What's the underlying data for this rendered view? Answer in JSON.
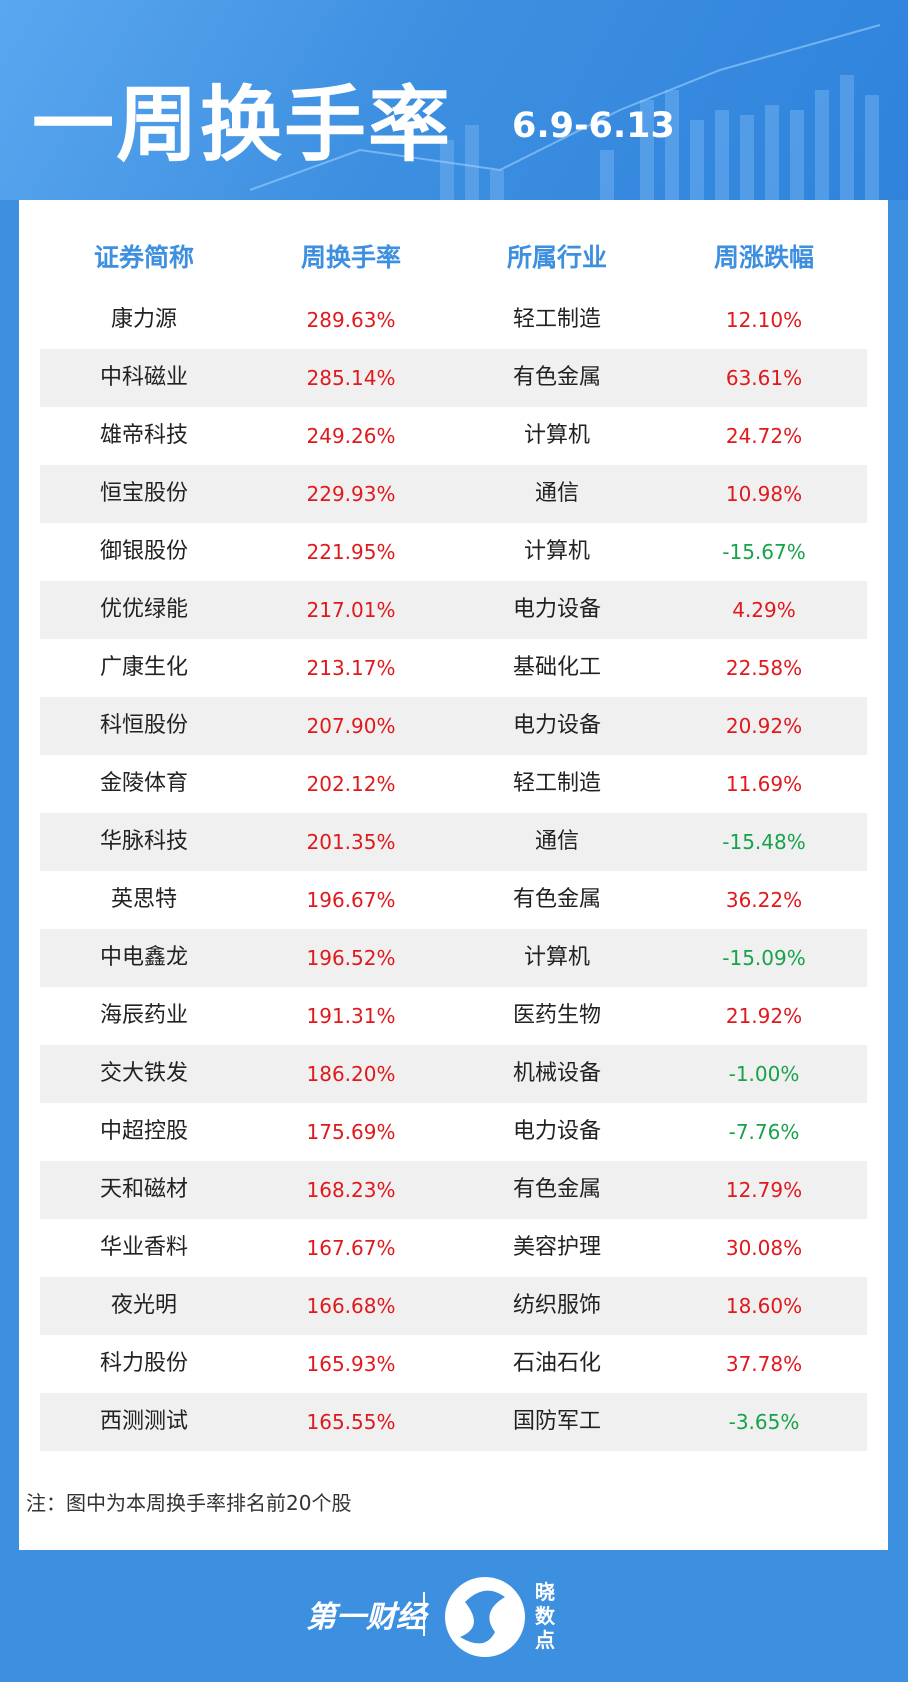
{
  "header": {
    "title": "一周换手率",
    "date": "6.9-6.13"
  },
  "table": {
    "columns": [
      "证券简称",
      "周换手率",
      "所属行业",
      "周涨跌幅"
    ],
    "rows": [
      [
        "康力源",
        "289.63%",
        "轻工制造",
        "12.10%"
      ],
      [
        "中科磁业",
        "285.14%",
        "有色金属",
        "63.61%"
      ],
      [
        "雄帝科技",
        "249.26%",
        "计算机",
        "24.72%"
      ],
      [
        "恒宝股份",
        "229.93%",
        "通信",
        "10.98%"
      ],
      [
        "御银股份",
        "221.95%",
        "计算机",
        "-15.67%"
      ],
      [
        "优优绿能",
        "217.01%",
        "电力设备",
        "4.29%"
      ],
      [
        "广康生化",
        "213.17%",
        "基础化工",
        "22.58%"
      ],
      [
        "科恒股份",
        "207.90%",
        "电力设备",
        "20.92%"
      ],
      [
        "金陵体育",
        "202.12%",
        "轻工制造",
        "11.69%"
      ],
      [
        "华脉科技",
        "201.35%",
        "通信",
        "-15.48%"
      ],
      [
        "英思特",
        "196.67%",
        "有色金属",
        "36.22%"
      ],
      [
        "中电鑫龙",
        "196.52%",
        "计算机",
        "-15.09%"
      ],
      [
        "海辰药业",
        "191.31%",
        "医药生物",
        "21.92%"
      ],
      [
        "交大铁发",
        "186.20%",
        "机械设备",
        "-1.00%"
      ],
      [
        "中超控股",
        "175.69%",
        "电力设备",
        "-7.76%"
      ],
      [
        "天和磁材",
        "168.23%",
        "有色金属",
        "12.79%"
      ],
      [
        "华业香料",
        "167.67%",
        "美容护理",
        "30.08%"
      ],
      [
        "夜光明",
        "166.68%",
        "纺织服饰",
        "18.60%"
      ],
      [
        "科力股份",
        "165.93%",
        "石油石化",
        "37.78%"
      ],
      [
        "西测测试",
        "165.55%",
        "国防军工",
        "-3.65%"
      ]
    ]
  },
  "note": "注：图中为本周换手率排名前20个股",
  "footer": {
    "brand": "第一财经",
    "sub_brand": "晓数点"
  }
}
